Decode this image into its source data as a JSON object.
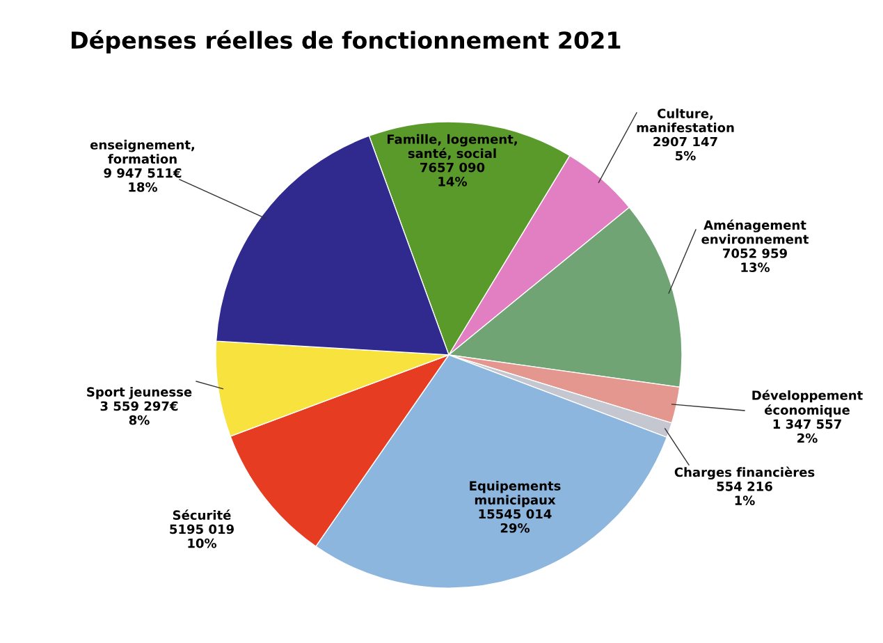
{
  "chart_data": {
    "type": "pie",
    "title": "Dépenses réelles de fonctionnement 2021",
    "categories": [
      "Famille, logement,\nsanté, social",
      "Culture,\nmanifestation",
      "Aménagement\nenvironnement",
      "Développement\néconomique",
      "Charges financières",
      "Equipements\nmunicipaux",
      "Sécurité",
      "Sport jeunesse",
      "enseignement,\nformation"
    ],
    "values": [
      7657090,
      2907147,
      7052959,
      1347557,
      554216,
      15545014,
      5195019,
      3559297,
      9947511
    ],
    "colors": [
      "#5a9a2a",
      "#e27fc3",
      "#70a474",
      "#e3978e",
      "#c4c6d0",
      "#8cb6de",
      "#e63c22",
      "#f7e23e",
      "#312a8e"
    ],
    "value_labels": [
      "7657 090\n14%",
      "2907 147\n5%",
      "7052 959\n13%",
      "1 347 557\n2%",
      "554 216\n1%",
      "15545 014\n29%",
      "5195 019\n10%",
      "3 559 297€\n8%",
      "9 947 511€\n18%"
    ]
  }
}
